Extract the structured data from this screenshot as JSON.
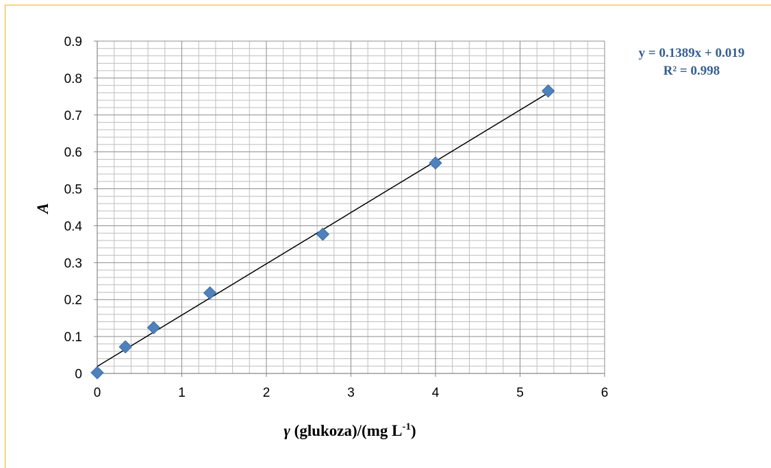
{
  "chart_data": {
    "type": "scatter",
    "x": [
      0,
      0.333,
      0.667,
      1.333,
      2.667,
      4.0,
      5.333
    ],
    "y": [
      0.002,
      0.072,
      0.124,
      0.218,
      0.377,
      0.57,
      0.765
    ],
    "xlim": [
      0,
      6
    ],
    "ylim": [
      0,
      0.9
    ],
    "x_ticks": [
      "0",
      "1",
      "2",
      "3",
      "4",
      "5",
      "6"
    ],
    "y_ticks": [
      "0",
      "0.1",
      "0.2",
      "0.3",
      "0.4",
      "0.5",
      "0.6",
      "0.7",
      "0.8",
      "0.9"
    ],
    "xlabel": {
      "symbol": "γ",
      "text": " (glukoza)/(mg L",
      "superscript": "-1",
      "close": ")"
    },
    "ylabel": "A",
    "trendline": {
      "slope": 0.1389,
      "intercept": 0.019,
      "equation": "y = 0.1389x + 0.019",
      "r_squared": "R² = 0.998"
    },
    "grid": {
      "major": true,
      "minor": true
    },
    "colors": {
      "marker": "#4F81BD",
      "marker_edge": "#3A6EA5",
      "trendline": "#000000",
      "equation_text": "#365F91",
      "frame_border": "#F5C84C",
      "major_grid": "#8C8C8C",
      "minor_grid": "#BEBEBE"
    },
    "marker_shape": "diamond"
  }
}
